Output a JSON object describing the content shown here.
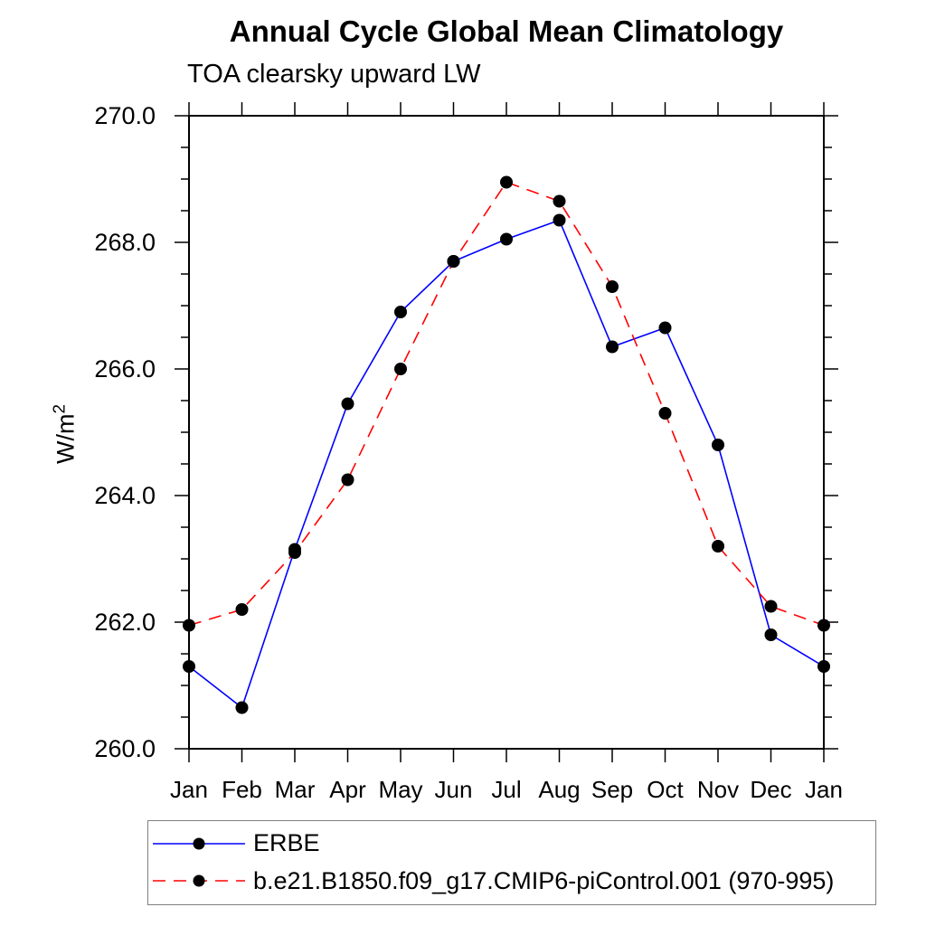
{
  "chart_data": {
    "type": "line",
    "title": "Annual Cycle Global Mean Climatology",
    "subtitle": "TOA clearsky upward LW",
    "ylabel": "W/m²",
    "ylabel_base": "W/m",
    "ylabel_exp": "2",
    "ylim": [
      260.0,
      270.0
    ],
    "ytick_major": [
      260.0,
      262.0,
      264.0,
      266.0,
      268.0,
      270.0
    ],
    "ytick_minor_interval": 0.5,
    "grid": false,
    "axis_color": "#000000",
    "marker_color": "#000000",
    "legend_position": "below-plot-left",
    "legend_border_color": "#808080",
    "categories": [
      "Jan",
      "Feb",
      "Mar",
      "Apr",
      "May",
      "Jun",
      "Jul",
      "Aug",
      "Sep",
      "Oct",
      "Nov",
      "Dec",
      "Jan"
    ],
    "series": [
      {
        "name": "ERBE",
        "color": "#0000ff",
        "line_style": "solid",
        "marker": "filled-circle",
        "values": [
          261.3,
          260.65,
          263.15,
          265.45,
          266.9,
          267.7,
          268.05,
          268.35,
          266.35,
          266.65,
          264.8,
          261.8,
          261.3
        ]
      },
      {
        "name": "b.e21.B1850.f09_g17.CMIP6-piControl.001 (970-995)",
        "color": "#ff0000",
        "line_style": "dashed",
        "marker": "filled-circle",
        "values": [
          261.95,
          262.2,
          263.1,
          264.25,
          266.0,
          267.7,
          268.95,
          268.65,
          267.3,
          265.3,
          263.2,
          262.25,
          261.95
        ]
      }
    ]
  }
}
